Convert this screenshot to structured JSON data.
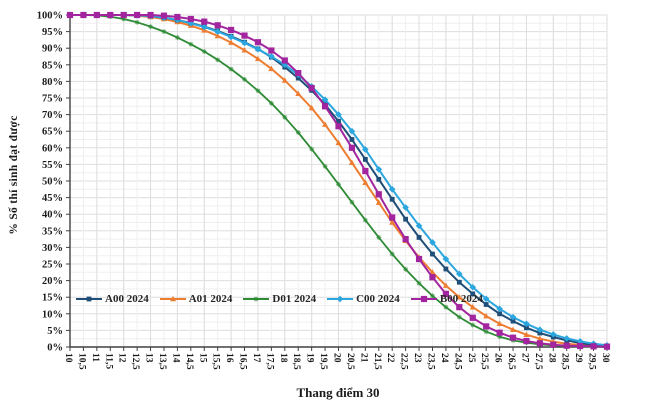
{
  "page": {
    "background": "#ffffff"
  },
  "chart_data": {
    "type": "line",
    "title": "",
    "xlabel": "Thang điểm 30",
    "ylabel": "% Số thí sinh đạt được",
    "x_range": [
      10,
      30
    ],
    "x_step": 0.5,
    "ylim": [
      0,
      100
    ],
    "y_tick_step": 5,
    "grid": true,
    "legend_position": "inside-bottom-left",
    "decimal_separator": ",",
    "x": [
      10,
      10.5,
      11,
      11.5,
      12,
      12.5,
      13,
      13.5,
      14,
      14.5,
      15,
      15.5,
      16,
      16.5,
      17,
      17.5,
      18,
      18.5,
      19,
      19.5,
      20,
      20.5,
      21,
      21.5,
      22,
      22.5,
      23,
      23.5,
      24,
      24.5,
      25,
      25.5,
      26,
      26.5,
      27,
      27.5,
      28,
      28.5,
      29,
      29.5,
      30
    ],
    "x_tick_labels": [
      "10",
      "10,5",
      "11",
      "11,5",
      "12",
      "12,5",
      "13",
      "13,5",
      "14",
      "14,5",
      "15",
      "15,5",
      "16",
      "16,5",
      "17",
      "17,5",
      "18",
      "18,5",
      "19",
      "19,5",
      "20",
      "20,5",
      "21",
      "21,5",
      "22",
      "22,5",
      "23",
      "23,5",
      "24",
      "24,5",
      "25",
      "25,5",
      "26",
      "26,5",
      "27",
      "27,5",
      "28",
      "28,5",
      "29",
      "29,5",
      "30"
    ],
    "y_tick_labels": [
      "100%",
      "95%",
      "90%",
      "85%",
      "80%",
      "75%",
      "70%",
      "65%",
      "60%",
      "55%",
      "50%",
      "45%",
      "40%",
      "35%",
      "30%",
      "25%",
      "20%",
      "15%",
      "10%",
      "5%",
      "0%"
    ],
    "series": [
      {
        "name": "A00 2024",
        "color": "#1f4e79",
        "marker": "square",
        "values": [
          100,
          100,
          100,
          100,
          100,
          99.9,
          99.7,
          99.2,
          98.5,
          97.6,
          96.5,
          95.2,
          93.6,
          91.8,
          89.8,
          87.3,
          84.3,
          81,
          77.3,
          73,
          68,
          62.5,
          56.5,
          50.5,
          44.5,
          38.5,
          33,
          28,
          23.5,
          19.5,
          16,
          12.8,
          10,
          7.8,
          5.8,
          4.2,
          3,
          2,
          1.2,
          0.6,
          0.3
        ]
      },
      {
        "name": "A01 2024",
        "color": "#ed7d31",
        "marker": "triangle",
        "values": [
          100,
          100,
          100,
          100,
          100,
          99.8,
          99.4,
          98.8,
          97.9,
          96.8,
          95.4,
          93.7,
          91.7,
          89.4,
          86.8,
          83.8,
          80.3,
          76.3,
          72,
          67,
          61.5,
          55.5,
          49.5,
          43.5,
          37.5,
          32,
          27,
          22.5,
          18.5,
          15,
          12,
          9.3,
          7,
          5.2,
          3.7,
          2.5,
          1.6,
          1,
          0.6,
          0.3,
          0.1
        ]
      },
      {
        "name": "D01 2024",
        "color": "#2e8b35",
        "marker": "star",
        "values": [
          100,
          100,
          99.9,
          99.5,
          98.8,
          97.8,
          96.5,
          95,
          93.2,
          91.2,
          89,
          86.5,
          83.7,
          80.6,
          77.2,
          73.4,
          69.2,
          64.6,
          59.6,
          54.4,
          49,
          43.6,
          38.2,
          33,
          28,
          23.4,
          19.2,
          15.4,
          12,
          9,
          6.6,
          4.6,
          3.1,
          2,
          1.3,
          0.8,
          0.5,
          0.3,
          0.2,
          0.1,
          0
        ]
      },
      {
        "name": "C00 2024",
        "color": "#2ba6de",
        "marker": "diamond",
        "values": [
          100,
          100,
          100,
          100,
          100,
          99.9,
          99.7,
          99.2,
          98.5,
          97.5,
          96.4,
          95,
          93.4,
          91.6,
          89.7,
          87.5,
          85,
          82,
          78.5,
          74.5,
          70,
          65,
          59.5,
          53.5,
          47.5,
          42,
          36.5,
          31.5,
          26.5,
          22,
          18,
          14.5,
          11.5,
          9,
          7,
          5.2,
          3.8,
          2.6,
          1.7,
          1,
          0.5
        ]
      },
      {
        "name": "B00 2024",
        "color": "#a2249e",
        "marker": "square-large",
        "values": [
          100,
          100,
          100,
          100,
          100,
          100,
          100,
          99.8,
          99.4,
          98.8,
          98,
          96.9,
          95.5,
          93.8,
          91.8,
          89.3,
          86.3,
          82.5,
          78,
          72.5,
          66.5,
          60,
          53,
          46,
          39,
          32.5,
          26.5,
          21,
          16,
          12,
          8.8,
          6.2,
          4.3,
          2.8,
          1.8,
          1.1,
          0.7,
          0.4,
          0.3,
          0.2,
          0.1
        ]
      }
    ],
    "colors": {
      "grid_major": "#dedede",
      "grid_minor": "#efefef",
      "axis": "#404040",
      "tick_text": "#1a1a1a"
    }
  }
}
